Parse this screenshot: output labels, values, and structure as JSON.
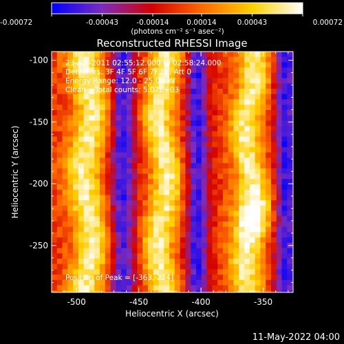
{
  "colors": {
    "background": "#000000",
    "foreground": "#ffffff",
    "colormap": [
      "#0000ff",
      "#7b2cbf",
      "#d40000",
      "#ff6a00",
      "#ffd000",
      "#ffffff"
    ]
  },
  "colorbar": {
    "range": [
      -0.00072,
      0.00072
    ],
    "tick_labels": [
      "-0.00072",
      "-0.00043",
      "-0.00014",
      "0.00014",
      "0.00043",
      "0.00072"
    ],
    "unit_label": "(photons cm⁻² s⁻¹ asec⁻²)"
  },
  "chart_data": {
    "type": "heatmap",
    "title": "Reconstructed RHESSI Image",
    "xlabel": "Heliocentric X (arcsec)",
    "ylabel": "Heliocentric Y (arcsec)",
    "xlim": [
      -520,
      -326
    ],
    "ylim": [
      -288,
      -93
    ],
    "x_ticks": [
      -500,
      -450,
      -400,
      -350
    ],
    "y_ticks": [
      -100,
      -150,
      -200,
      -250
    ],
    "info_lines": [
      "23-Apr-2011 02:55:12.000 to 02:58:24.000",
      "Detectors: 3F 4F 5F 6F 7F 8F, Att 0",
      "Energy Range: 12.0 - 25.0 keV",
      "Clean    Total counts: 5.02E+03"
    ],
    "peak_label": "Position of Peak = [-363,-224]",
    "peak": [
      -363,
      -224
    ],
    "stripes": [
      {
        "x": -493,
        "width": 15,
        "sign": 1
      },
      {
        "x": -465,
        "width": 10,
        "sign": -1
      },
      {
        "x": -433,
        "width": 13,
        "sign": 1
      },
      {
        "x": -405,
        "width": 9,
        "sign": -1
      },
      {
        "x": -363,
        "width": 13,
        "sign": 1
      },
      {
        "x": -334,
        "width": 9,
        "sign": -1
      }
    ],
    "grid": false,
    "legend": "none"
  },
  "footer": {
    "timestamp": "11-May-2022 04:00"
  }
}
